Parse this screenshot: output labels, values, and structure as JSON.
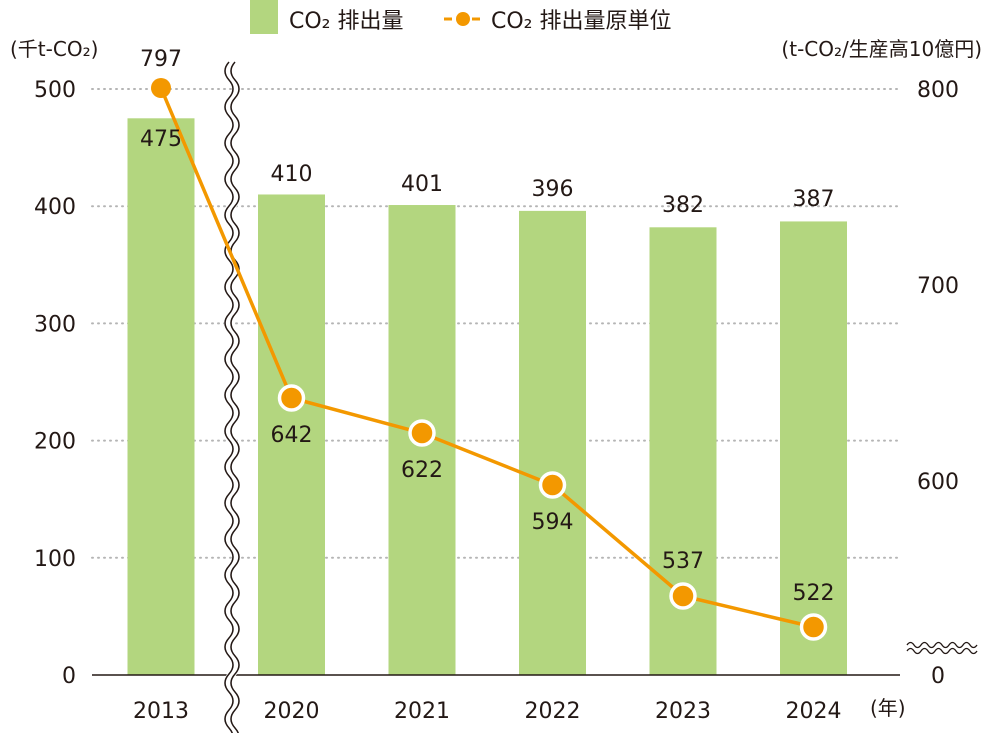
{
  "chart_data": {
    "type": "bar+line",
    "categories": [
      "2013",
      "2020",
      "2021",
      "2022",
      "2023",
      "2024"
    ],
    "series": [
      {
        "name": "CO₂ 排出量",
        "type": "bar",
        "axis": "left",
        "color": "#b3d67f",
        "values": [
          475,
          410,
          401,
          396,
          382,
          387
        ]
      },
      {
        "name": "CO₂ 排出量原単位",
        "type": "line",
        "axis": "right",
        "color": "#f39800",
        "values": [
          797,
          642,
          622,
          594,
          537,
          522
        ]
      }
    ],
    "left_axis": {
      "label": "(千t-CO₂)",
      "ticks": [
        0,
        100,
        200,
        300,
        400,
        500
      ],
      "ylim": [
        0,
        500
      ]
    },
    "right_axis": {
      "label": "(t-CO₂/生産高10億円)",
      "ticks": [
        0,
        600,
        700,
        800
      ],
      "ylim_broken": [
        500,
        800
      ],
      "break_marker": true
    },
    "x_axis": {
      "unit_label": "(年)",
      "break_between": [
        "2013",
        "2020"
      ]
    },
    "legend": {
      "placement": "top-center",
      "items": [
        "CO₂ 排出量",
        "CO₂ 排出量原単位"
      ]
    },
    "grid": "dotted-horizontal"
  }
}
